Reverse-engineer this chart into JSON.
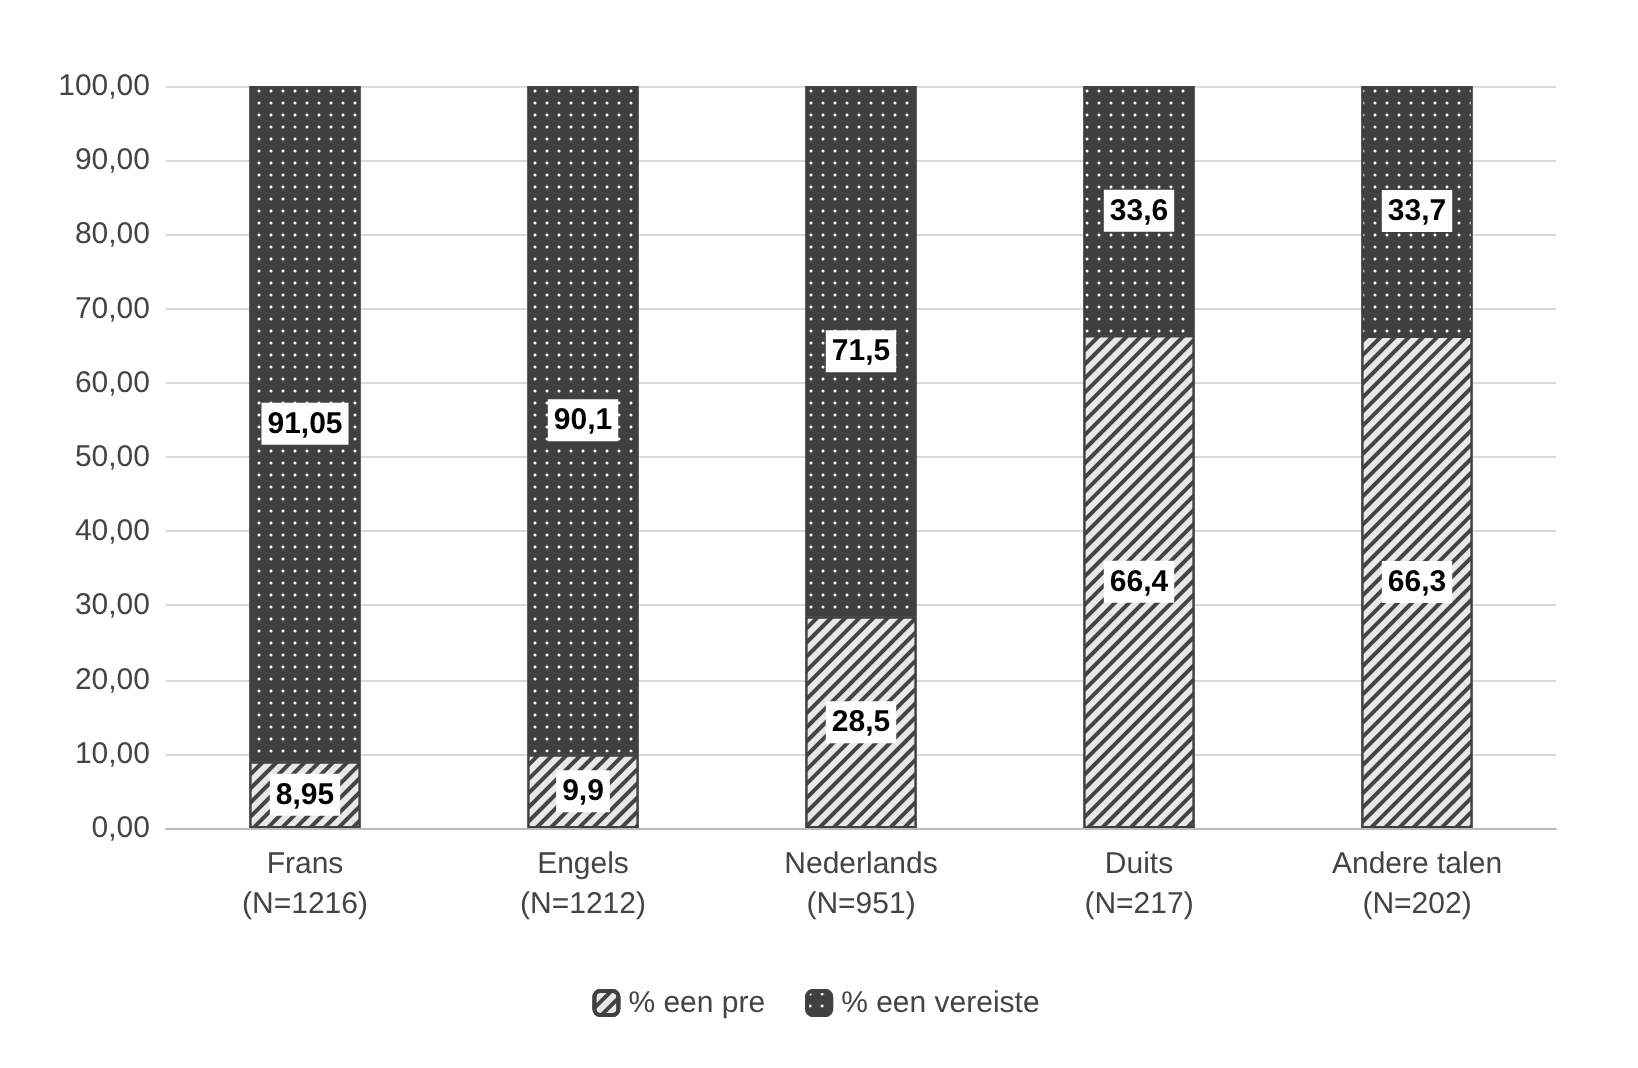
{
  "chart_data": {
    "type": "bar",
    "stacked": true,
    "categories": [
      "Frans\n(N=1216)",
      "Engels\n(N=1212)",
      "Nederlands\n(N=951)",
      "Duits\n(N=217)",
      "Andere talen\n(N=202)"
    ],
    "series": [
      {
        "name": "% een pre",
        "color": "#e8e8e8",
        "values": [
          8.95,
          9.9,
          28.5,
          66.4,
          66.3
        ],
        "value_labels": [
          "8,95",
          "9,9",
          "28,5",
          "66,4",
          "66,3"
        ]
      },
      {
        "name": "% een vereiste",
        "color": "#404040",
        "values": [
          91.05,
          90.1,
          71.5,
          33.6,
          33.7
        ],
        "value_labels": [
          "91,05",
          "90,1",
          "71,5",
          "33,6",
          "33,7"
        ]
      }
    ],
    "ylim": [
      0,
      100
    ],
    "yticks": [
      {
        "value": 0,
        "label": "0,00"
      },
      {
        "value": 10,
        "label": "10,00"
      },
      {
        "value": 20,
        "label": "20,00"
      },
      {
        "value": 30,
        "label": "30,00"
      },
      {
        "value": 40,
        "label": "40,00"
      },
      {
        "value": 50,
        "label": "50,00"
      },
      {
        "value": 60,
        "label": "60,00"
      },
      {
        "value": 70,
        "label": "70,00"
      },
      {
        "value": 80,
        "label": "80,00"
      },
      {
        "value": 90,
        "label": "90,00"
      },
      {
        "value": 100,
        "label": "100,00"
      }
    ],
    "grid": "y",
    "legend": "bottom"
  }
}
